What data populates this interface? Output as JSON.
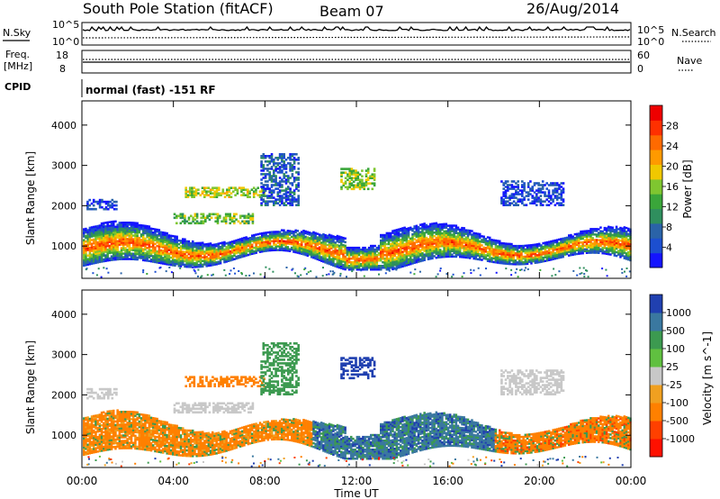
{
  "header": {
    "station": "South Pole Station (fitACF)",
    "beam": "Beam 07",
    "date": "26/Aug/2014"
  },
  "top_panels": {
    "nsky_label": "N.Sky",
    "nsearch_label": "N.Search",
    "noise_ticks_left": [
      "10^5",
      "10^0"
    ],
    "noise_ticks_right": [
      "10^5",
      "10^0"
    ],
    "freq_label_1": "Freq.",
    "freq_label_2": "[MHz]",
    "freq_ticks": [
      "18",
      "8"
    ],
    "nave_label": "Nave",
    "nave_ticks": [
      "60",
      "0"
    ],
    "cpid_label": "CPID",
    "cpid_value": "normal (fast) -151 RF"
  },
  "chart_data": [
    {
      "type": "heatmap",
      "title": "",
      "ylabel": "Slant Range [km]",
      "xlabel": "Time UT",
      "x_ticks": [
        "00:00",
        "04:00",
        "08:00",
        "12:00",
        "16:00",
        "20:00",
        "00:00"
      ],
      "y_ticks": [
        1000,
        2000,
        3000,
        4000
      ],
      "ylim": [
        200,
        4600
      ],
      "xlim_hours": [
        0,
        24
      ],
      "colorbar": {
        "label": "Power [dB]",
        "ticks": [
          4,
          8,
          12,
          16,
          20,
          24,
          28
        ],
        "colors": [
          "#1414ff",
          "#1c4fd0",
          "#2a63a8",
          "#2f8f5e",
          "#3aa63a",
          "#7fc630",
          "#f0c800",
          "#ff9a00",
          "#ff6a00",
          "#ff3000",
          "#ee0000"
        ]
      },
      "regions_hours_km": [
        {
          "t0": 0.0,
          "t1": 24.0,
          "r0": 500,
          "r1": 1500,
          "level": "strong (24-28 dB)"
        },
        {
          "t0": 4.5,
          "t1": 8.0,
          "r0": 2200,
          "r1": 2450,
          "level": "moderate (12-20 dB)"
        },
        {
          "t0": 4.0,
          "t1": 7.5,
          "r0": 1550,
          "r1": 1800,
          "level": "moderate (12-20 dB)"
        },
        {
          "t0": 11.3,
          "t1": 12.8,
          "r0": 2400,
          "r1": 2900,
          "level": "moderate (12-20 dB)"
        },
        {
          "t0": 0.2,
          "t1": 1.5,
          "r0": 1900,
          "r1": 2150,
          "level": "weak (4-8 dB)"
        },
        {
          "t0": 18.3,
          "t1": 21.0,
          "r0": 2000,
          "r1": 2600,
          "level": "weak (4-8 dB)"
        }
      ]
    },
    {
      "type": "heatmap",
      "title": "",
      "ylabel": "Slant Range [km]",
      "xlabel": "Time UT",
      "x_ticks": [
        "00:00",
        "04:00",
        "08:00",
        "12:00",
        "16:00",
        "20:00",
        "00:00"
      ],
      "y_ticks": [
        1000,
        2000,
        3000,
        4000
      ],
      "ylim": [
        200,
        4600
      ],
      "xlim_hours": [
        0,
        24
      ],
      "colorbar": {
        "label": "Velocity [m s^-1]",
        "ticks": [
          1000,
          500,
          100,
          25,
          -25,
          -100,
          -500,
          -1000
        ],
        "colors": [
          "#2040b0",
          "#3a78a0",
          "#3c9a50",
          "#60c040",
          "#c8c8c8",
          "#f0a020",
          "#ff8000",
          "#ff4000",
          "#ff1000"
        ]
      },
      "regions_hours_km": [
        {
          "t0": 0.0,
          "t1": 10.0,
          "r0": 600,
          "r1": 1500,
          "level": "-100 to -500 m/s"
        },
        {
          "t0": 10.0,
          "t1": 18.0,
          "r0": 600,
          "r1": 1500,
          "level": "+100 to +500 m/s"
        },
        {
          "t0": 18.0,
          "t1": 24.0,
          "r0": 700,
          "r1": 1500,
          "level": "-100 to -500 m/s"
        },
        {
          "t0": 4.0,
          "t1": 8.0,
          "r0": 1550,
          "r1": 2000,
          "level": "-25 to +25 m/s"
        },
        {
          "t0": 11.3,
          "t1": 12.8,
          "r0": 2400,
          "r1": 2900,
          "level": "+500 to +1000 m/s"
        }
      ]
    }
  ]
}
